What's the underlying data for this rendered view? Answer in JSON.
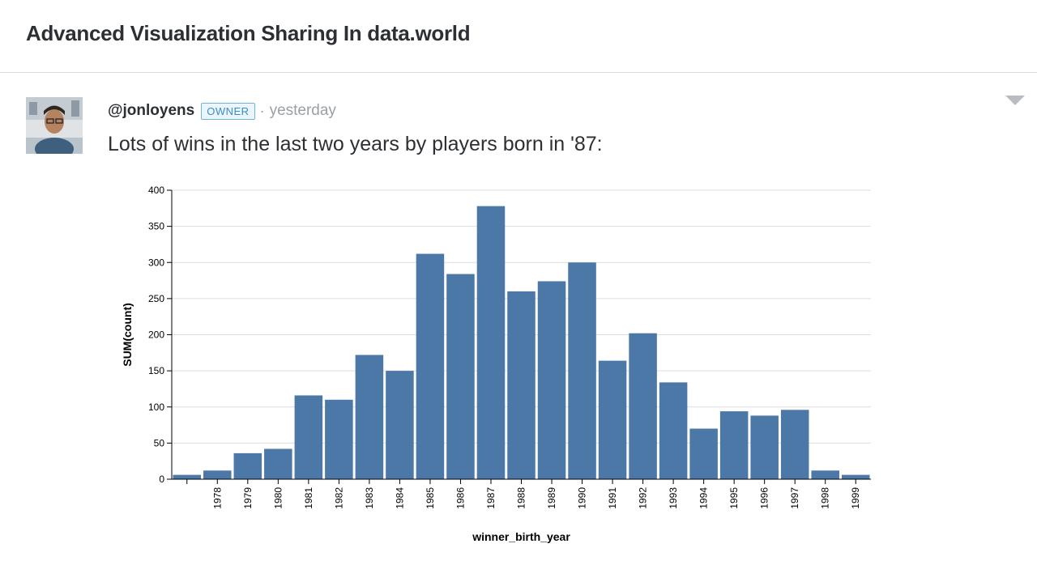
{
  "header": {
    "title": "Advanced Visualization Sharing In data.world"
  },
  "post": {
    "username": "@jonloyens",
    "badge": "OWNER",
    "separator": "·",
    "timestamp": "yesterday",
    "text": "Lots of wins in the last two years by players born in '87:"
  },
  "chart_data": {
    "type": "bar",
    "xlabel": "winner_birth_year",
    "ylabel": "SUM(count)",
    "ylim": [
      0,
      400
    ],
    "yticks": [
      0,
      50,
      100,
      150,
      200,
      250,
      300,
      350,
      400
    ],
    "grid": true,
    "color": "#4c78a8",
    "categories": [
      "",
      "1978",
      "1979",
      "1980",
      "1981",
      "1982",
      "1983",
      "1984",
      "1985",
      "1986",
      "1987",
      "1988",
      "1989",
      "1990",
      "1991",
      "1992",
      "1993",
      "1994",
      "1995",
      "1996",
      "1997",
      "1998",
      "1999"
    ],
    "values": [
      6,
      12,
      36,
      42,
      116,
      110,
      172,
      150,
      312,
      284,
      378,
      260,
      274,
      300,
      164,
      202,
      134,
      70,
      94,
      88,
      96,
      12,
      6
    ]
  }
}
